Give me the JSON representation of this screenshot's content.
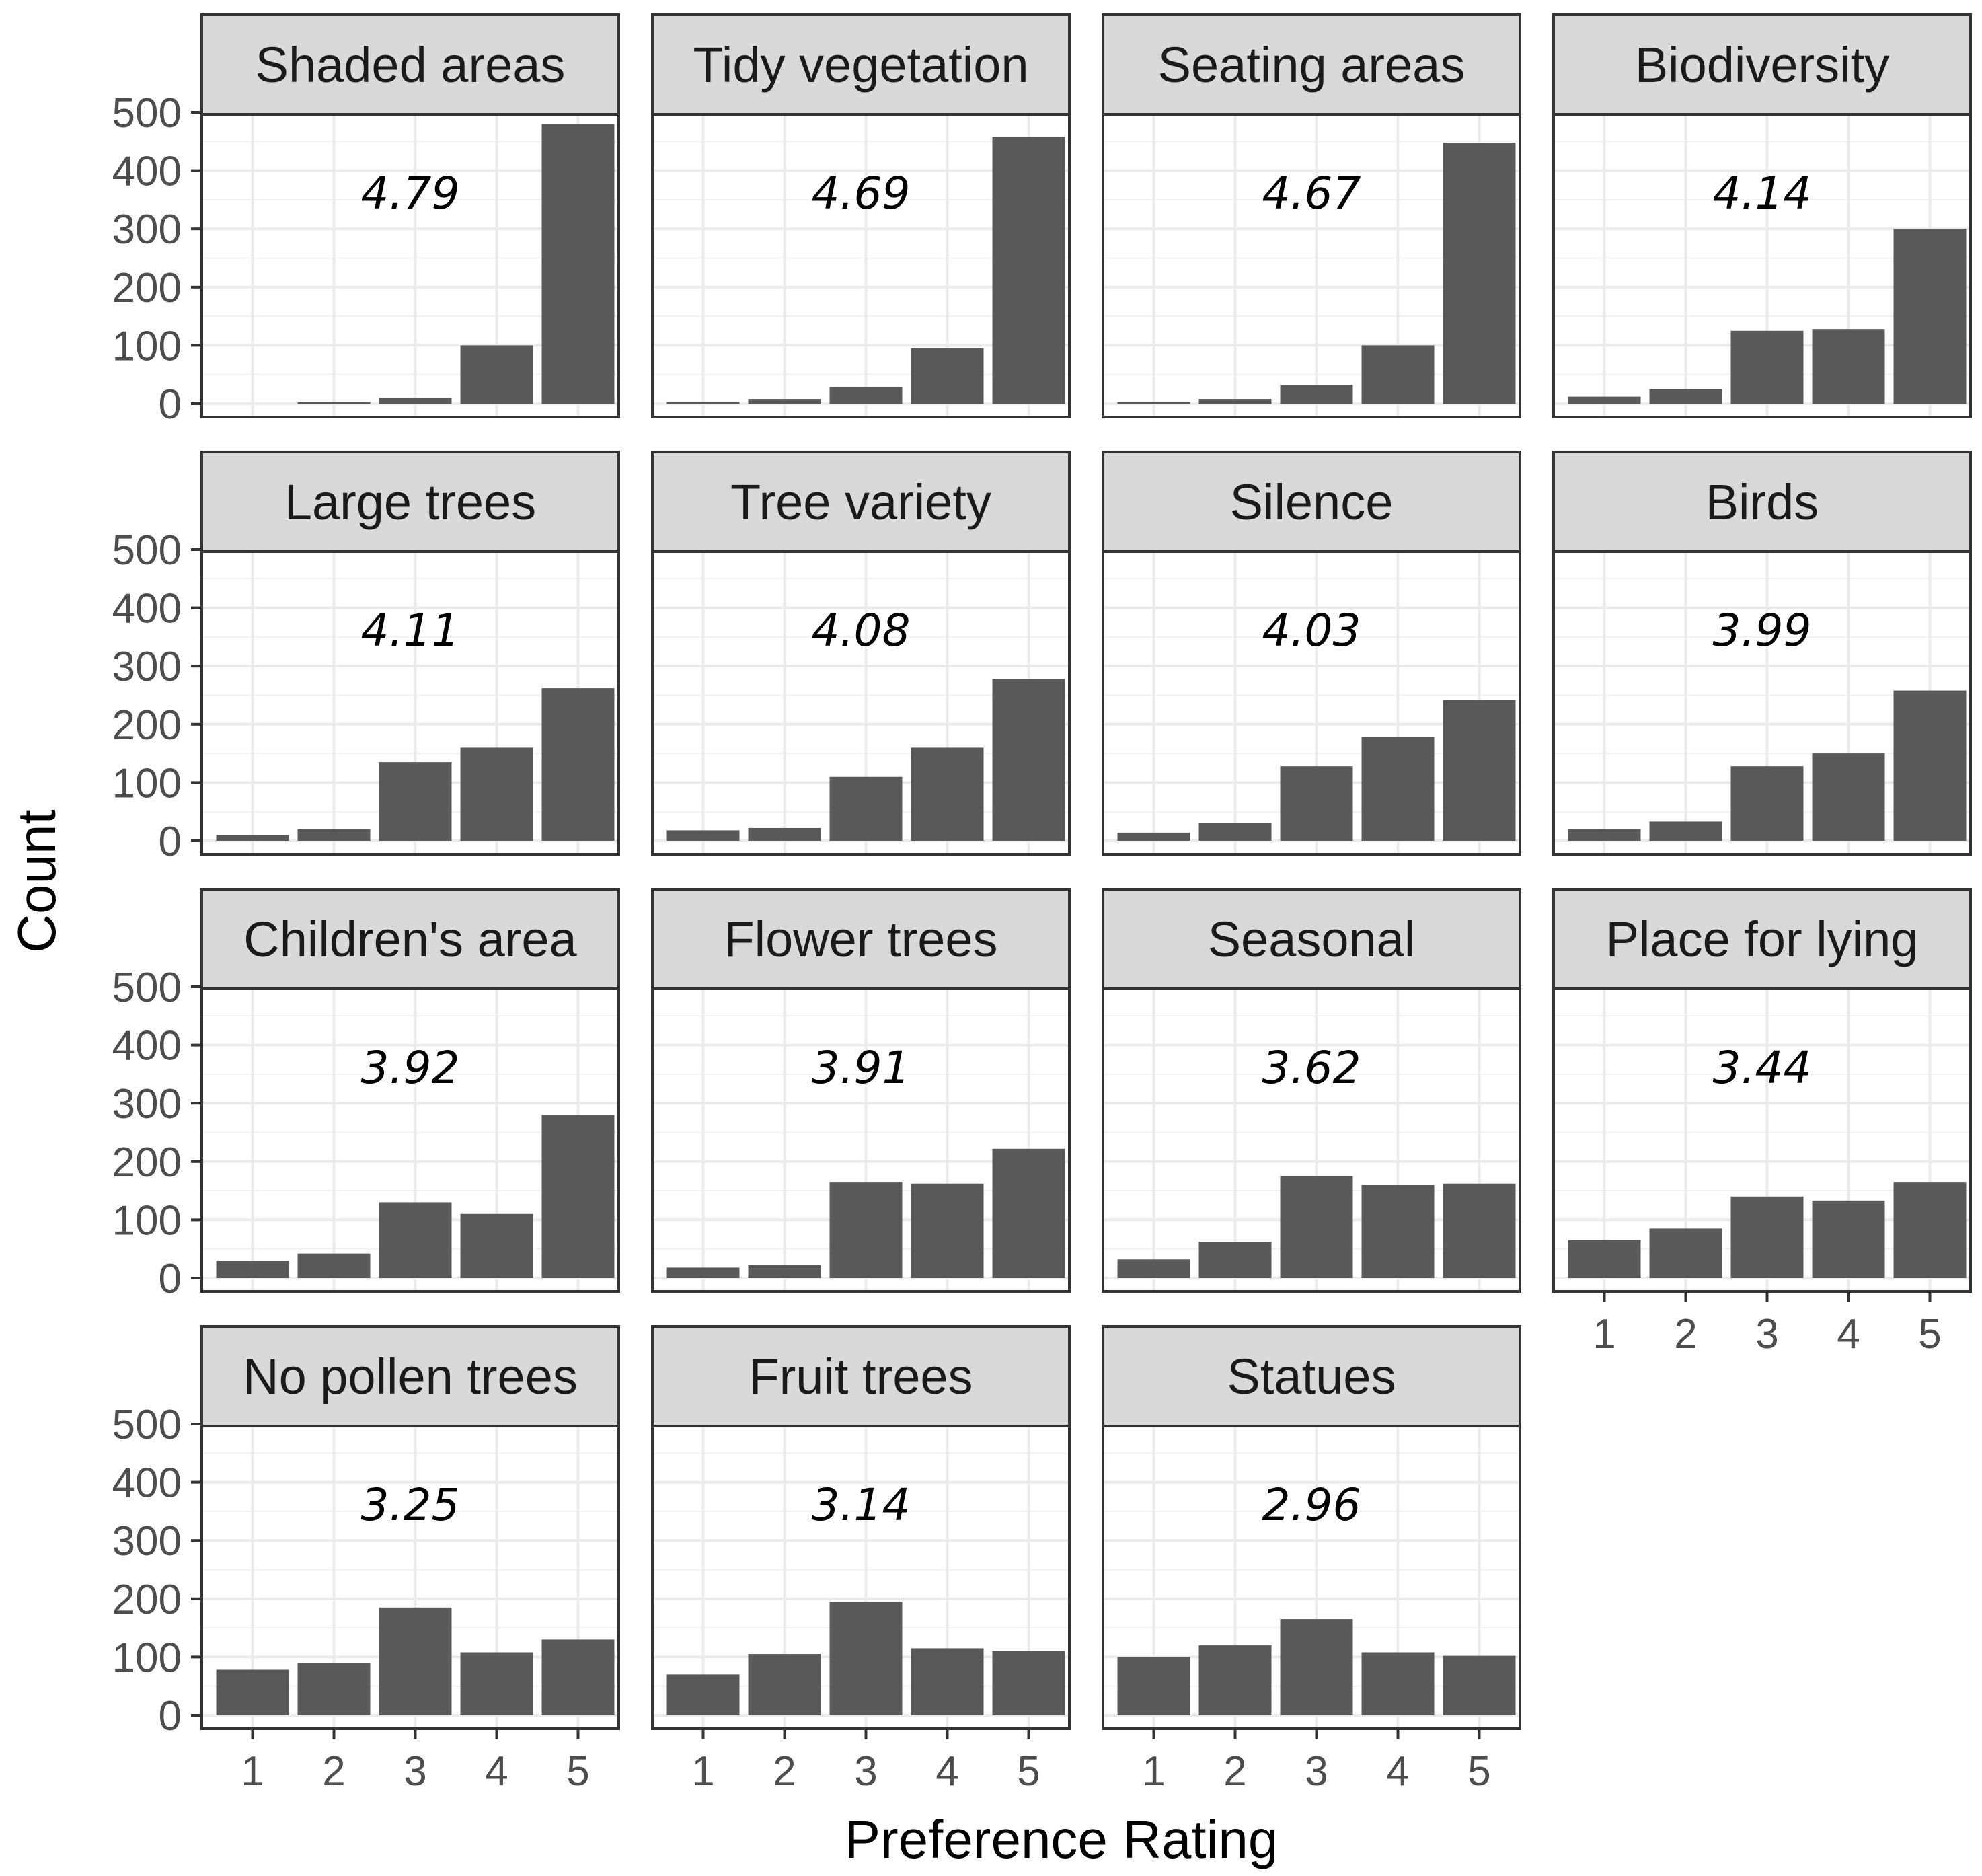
{
  "chart_data": {
    "type": "bar",
    "layout": "facet_wrap",
    "xlabel": "Preference Rating",
    "ylabel": "Count",
    "categories": [
      "1",
      "2",
      "3",
      "4",
      "5"
    ],
    "ylim": [
      0,
      500
    ],
    "yticks": [
      0,
      100,
      200,
      300,
      400,
      500
    ],
    "bar_color": "#595959",
    "strip_color": "#d9d9d9",
    "grid": true,
    "panels": [
      {
        "title": "Shaded areas",
        "mean": "4.79",
        "values": [
          0,
          2,
          10,
          100,
          480
        ]
      },
      {
        "title": "Tidy vegetation",
        "mean": "4.69",
        "values": [
          3,
          8,
          28,
          95,
          458
        ]
      },
      {
        "title": "Seating areas",
        "mean": "4.67",
        "values": [
          3,
          8,
          32,
          100,
          448
        ]
      },
      {
        "title": "Biodiversity",
        "mean": "4.14",
        "values": [
          12,
          25,
          125,
          128,
          300
        ]
      },
      {
        "title": "Large trees",
        "mean": "4.11",
        "values": [
          10,
          20,
          135,
          160,
          262
        ]
      },
      {
        "title": "Tree variety",
        "mean": "4.08",
        "values": [
          18,
          22,
          110,
          160,
          278
        ]
      },
      {
        "title": "Silence",
        "mean": "4.03",
        "values": [
          14,
          30,
          128,
          178,
          242
        ]
      },
      {
        "title": "Birds",
        "mean": "3.99",
        "values": [
          20,
          33,
          128,
          150,
          258
        ]
      },
      {
        "title": "Children's area",
        "mean": "3.92",
        "values": [
          30,
          42,
          130,
          110,
          280
        ]
      },
      {
        "title": "Flower trees",
        "mean": "3.91",
        "values": [
          18,
          22,
          165,
          162,
          222
        ]
      },
      {
        "title": "Seasonal",
        "mean": "3.62",
        "values": [
          32,
          62,
          175,
          160,
          162
        ]
      },
      {
        "title": "Place for lying",
        "mean": "3.44",
        "values": [
          65,
          85,
          140,
          133,
          165
        ]
      },
      {
        "title": "No pollen trees",
        "mean": "3.25",
        "values": [
          78,
          90,
          185,
          108,
          130
        ]
      },
      {
        "title": "Fruit trees",
        "mean": "3.14",
        "values": [
          70,
          105,
          195,
          115,
          110
        ]
      },
      {
        "title": "Statues",
        "mean": "2.96",
        "values": [
          100,
          120,
          165,
          108,
          102
        ]
      }
    ]
  }
}
